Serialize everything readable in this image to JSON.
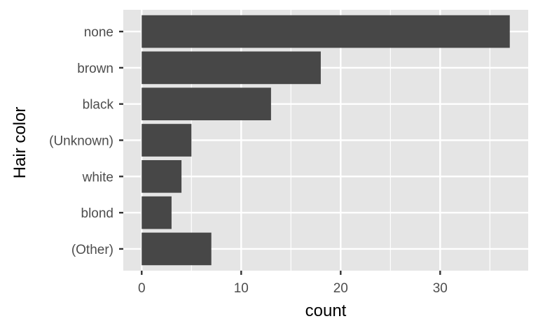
{
  "chart_data": {
    "type": "bar",
    "orientation": "horizontal",
    "categories": [
      "none",
      "brown",
      "black",
      "(Unknown)",
      "white",
      "blond",
      "(Other)"
    ],
    "values": [
      37,
      18,
      13,
      5,
      4,
      3,
      7
    ],
    "xlabel": "count",
    "ylabel": "Hair color",
    "xlim": [
      -1.85,
      38.85
    ],
    "xticks": [
      0,
      10,
      20,
      30
    ],
    "xtick_labels": [
      "0",
      "10",
      "20",
      "30"
    ],
    "grid": true,
    "colors": {
      "bar": "#474747",
      "panel": "#e5e5e5",
      "grid": "#ffffff",
      "text": "#4d4d4d"
    }
  }
}
